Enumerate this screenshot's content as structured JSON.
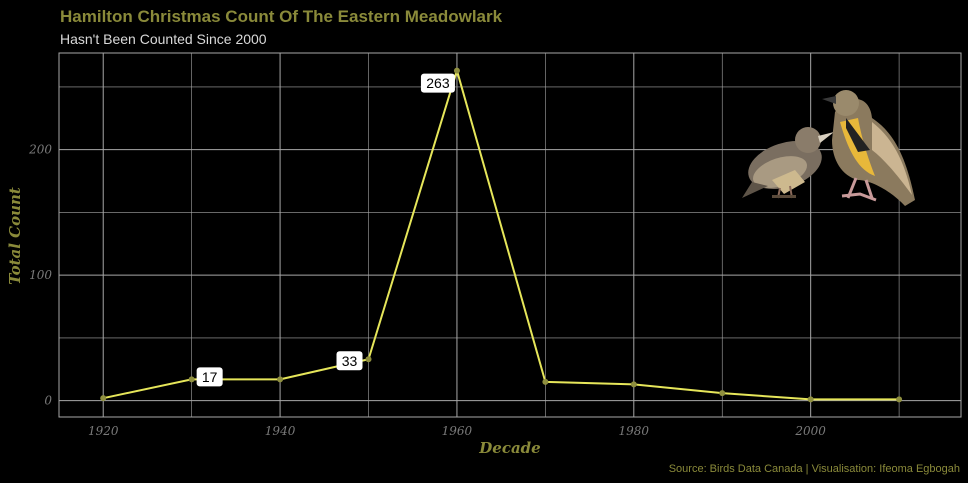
{
  "header": {
    "title": "Hamilton Christmas Count Of The Eastern Meadowlark",
    "subtitle": "Hasn't Been Counted Since 2000"
  },
  "caption": "Source: Birds Data Canada | Visualisation: Ifeoma Egbogah",
  "colors": {
    "background": "#000000",
    "title": "#8a8a3a",
    "text_light": "#d9d9d9",
    "line": "#e6e65a",
    "point": "#8f8f3f",
    "grid": "#a8a8a8",
    "label_bg": "#ffffff",
    "label_text": "#000000"
  },
  "image": {
    "icon": "meadowlark-birds-photo"
  },
  "chart_data": {
    "type": "line",
    "title": "Hamilton Christmas Count Of The Eastern Meadowlark",
    "subtitle": "Hasn't Been Counted Since 2000",
    "xlabel": "Decade",
    "ylabel": "Total Count",
    "x": [
      1920,
      1930,
      1940,
      1950,
      1960,
      1970,
      1980,
      1990,
      2000,
      2010
    ],
    "series": [
      {
        "values": [
          2,
          17,
          17,
          33,
          263,
          15,
          13,
          6,
          1,
          1
        ]
      }
    ],
    "data_labels": [
      {
        "x": 1930,
        "y": 17,
        "text": "17"
      },
      {
        "x": 1950,
        "y": 33,
        "text": "33"
      },
      {
        "x": 1960,
        "y": 263,
        "text": "263"
      }
    ],
    "xticks": [
      1920,
      1940,
      1960,
      1980,
      2000
    ],
    "yticks": [
      0,
      100,
      200
    ],
    "xlim": [
      1915,
      2017
    ],
    "ylim": [
      -13,
      277
    ],
    "grid": true
  }
}
